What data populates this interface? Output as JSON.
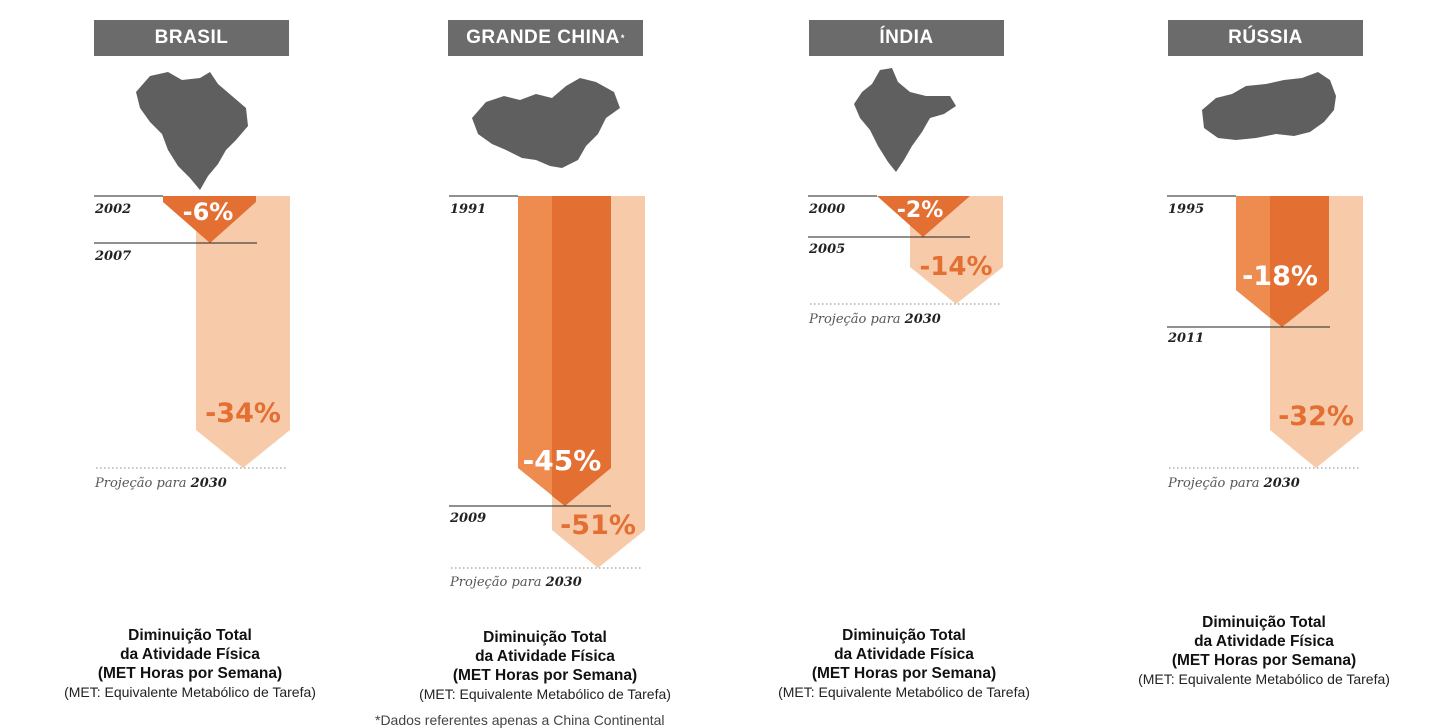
{
  "chart_data": [
    {
      "type": "bar",
      "country": "BRASIL",
      "baseline_year": "2002",
      "values": [
        {
          "year": "2007",
          "label": "-6%",
          "value": -6
        },
        {
          "year": "Projeção para 2030",
          "label": "-34%",
          "value": -34
        }
      ],
      "caption": {
        "line1": "Diminuição Total",
        "line2": "da Atividade Física",
        "line3": "(MET Horas por Semana)",
        "line4": "(MET: Equivalente Metabólico de Tarefa)"
      }
    },
    {
      "type": "bar",
      "country": "GRANDE CHINA",
      "country_mark": "*",
      "baseline_year": "1991",
      "values": [
        {
          "year": "2009",
          "label": "-45%",
          "value": -45
        },
        {
          "year": "Projeção para 2030",
          "label": "-51%",
          "value": -51
        }
      ],
      "caption": {
        "line1": "Diminuição Total",
        "line2": "da Atividade Física",
        "line3": "(MET Horas por Semana)",
        "line4": "(MET: Equivalente Metabólico de Tarefa)"
      }
    },
    {
      "type": "bar",
      "country": "ÍNDIA",
      "baseline_year": "2000",
      "values": [
        {
          "year": "2005",
          "label": "-2%",
          "value": -2
        },
        {
          "year": "Projeção para 2030",
          "label": "-14%",
          "value": -14
        }
      ],
      "caption": {
        "line1": "Diminuição Total",
        "line2": "da Atividade Física",
        "line3": "(MET Horas por Semana)",
        "line4": "(MET: Equivalente Metabólico de Tarefa)"
      }
    },
    {
      "type": "bar",
      "country": "RÚSSIA",
      "baseline_year": "1995",
      "values": [
        {
          "year": "2011",
          "label": "-18%",
          "value": -18
        },
        {
          "year": "Projeção para 2030",
          "label": "-32%",
          "value": -32
        }
      ],
      "caption": {
        "line1": "Diminuição Total",
        "line2": "da Atividade Física",
        "line3": "(MET Horas por Semana)",
        "line4": "(MET: Equivalente Metabólico de Tarefa)"
      }
    }
  ],
  "projection": {
    "prefix": "Projeção para ",
    "year": "2030"
  },
  "footnote": "*Dados referentes apenas a China Continental",
  "colors": {
    "header_bg": "#6b6b6b",
    "dark_orange": "#e36f33",
    "mid_orange": "#ee8b4f",
    "light_peach": "#f7cba9",
    "map_gray": "#5f5f5f"
  }
}
